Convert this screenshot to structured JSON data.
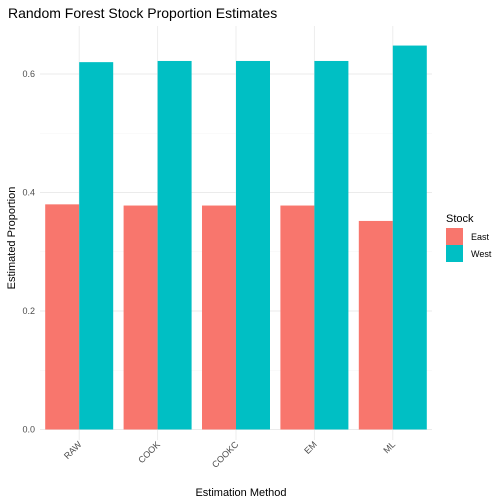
{
  "chart_data": {
    "type": "bar",
    "title": "Random Forest Stock Proportion Estimates",
    "xlabel": "Estimation Method",
    "ylabel": "Estimated Proportion",
    "categories": [
      "RAW",
      "COOK",
      "COOKC",
      "EM",
      "ML"
    ],
    "series": [
      {
        "name": "East",
        "values": [
          0.38,
          0.378,
          0.378,
          0.378,
          0.352
        ],
        "color": "#F8766D"
      },
      {
        "name": "West",
        "values": [
          0.62,
          0.622,
          0.622,
          0.622,
          0.648
        ],
        "color": "#00BFC4"
      }
    ],
    "yticks": [
      0.0,
      0.2,
      0.4,
      0.6
    ],
    "ytick_labels": [
      "0.0",
      "0.2",
      "0.4",
      "0.6"
    ],
    "ylim": [
      0,
      0.68
    ],
    "grid": true,
    "legend": {
      "title": "Stock",
      "position": "right"
    }
  }
}
